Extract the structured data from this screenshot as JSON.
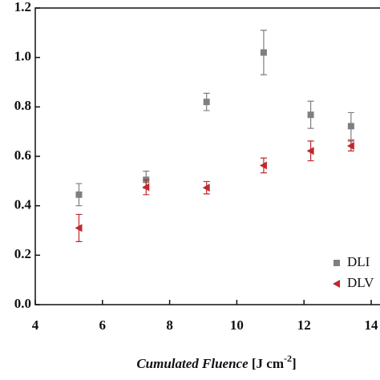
{
  "chart_data": {
    "type": "scatter",
    "x_label": {
      "text": "Cumulated Fluence",
      "unit": "[J cm",
      "exponent": "-2",
      "close": "]"
    },
    "x": [
      5.3,
      7.3,
      9.1,
      10.8,
      12.2,
      13.4
    ],
    "series": [
      {
        "name": "DLI",
        "color": "#7f7f7f",
        "marker": "square",
        "values": [
          0.445,
          0.505,
          0.82,
          1.02,
          0.768,
          0.722
        ],
        "errors": [
          0.045,
          0.035,
          0.035,
          0.09,
          0.055,
          0.055
        ]
      },
      {
        "name": "DLV",
        "color": "#c0282e",
        "marker": "triangle-left",
        "values": [
          0.31,
          0.475,
          0.473,
          0.563,
          0.622,
          0.642
        ],
        "errors": [
          0.055,
          0.03,
          0.025,
          0.03,
          0.04,
          0.02
        ]
      }
    ],
    "xlim": [
      4,
      14
    ],
    "xticks": [
      4,
      6,
      8,
      10,
      12,
      14
    ],
    "ylim": [
      0,
      1.2
    ],
    "yticks": [
      {
        "value": 0,
        "label": "0.0"
      },
      0.2,
      0.4,
      0.6,
      0.8,
      {
        "value": 1,
        "label": "1.0"
      },
      1.2
    ],
    "legend": "lower-right"
  }
}
